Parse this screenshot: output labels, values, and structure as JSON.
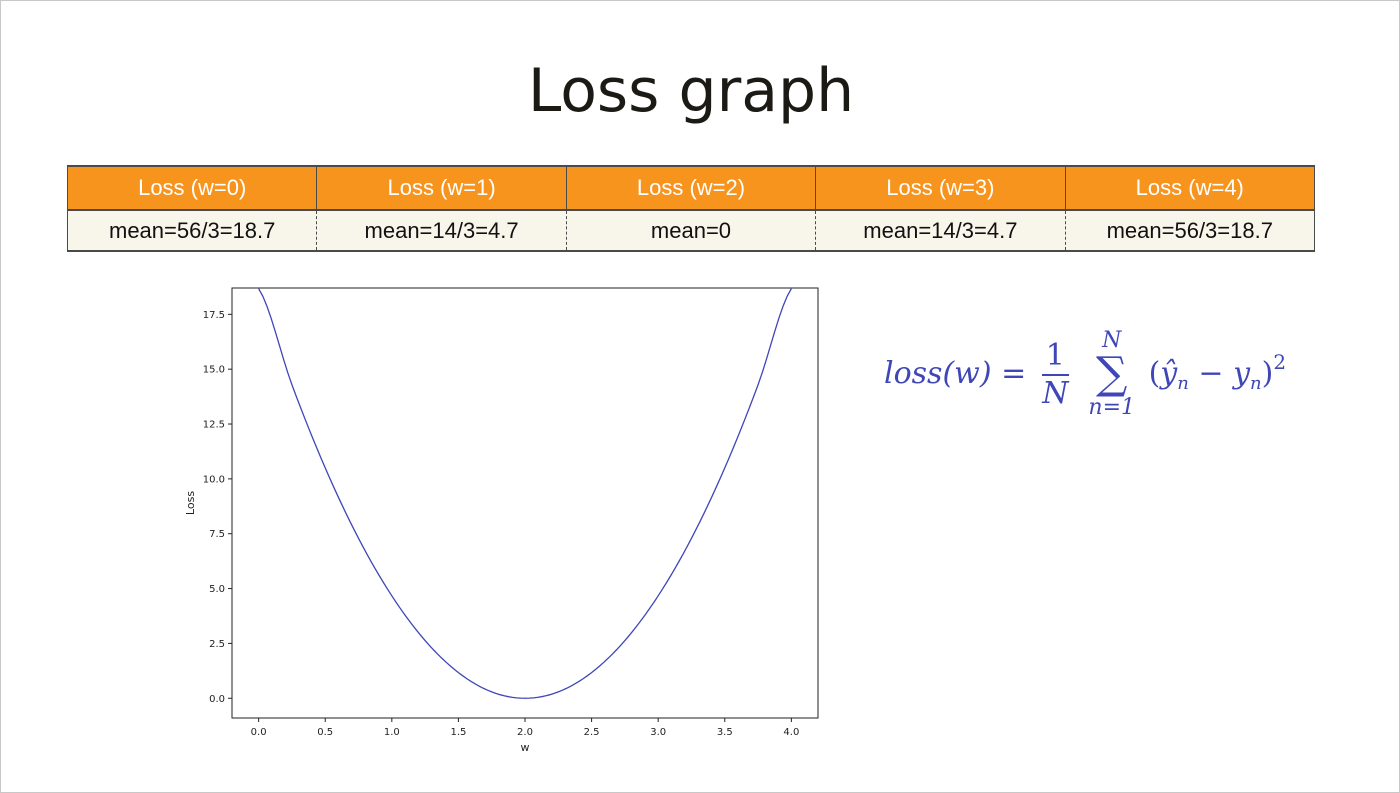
{
  "slide": {
    "title": "Loss graph"
  },
  "table": {
    "headers": [
      "Loss (w=0)",
      "Loss (w=1)",
      "Loss (w=2)",
      "Loss (w=3)",
      "Loss (w=4)"
    ],
    "values": [
      "mean=56/3=18.7",
      "mean=14/3=4.7",
      "mean=0",
      "mean=14/3=4.7",
      "mean=56/3=18.7"
    ],
    "colors": {
      "header_bg": "#f7941d",
      "header_text": "#ffffff",
      "row_bg": "#f8f6ea"
    }
  },
  "formula": {
    "lhs": "loss(w) =",
    "frac_num": "1",
    "frac_den": "N",
    "sum_upper": "N",
    "sum_symbol": "∑",
    "sum_lower": "n=1",
    "term_yhat": "ŷ",
    "term_sub_n": "n",
    "term_minus": "−",
    "term_y": "y",
    "power": "2",
    "color": "#3f46b8"
  },
  "chart_data": {
    "type": "line",
    "title": "",
    "xlabel": "w",
    "ylabel": "Loss",
    "xlim": [
      -0.2,
      4.2
    ],
    "ylim": [
      -0.9,
      18.7
    ],
    "x_ticks": [
      "0.0",
      "0.5",
      "1.0",
      "1.5",
      "2.0",
      "2.5",
      "3.0",
      "3.5",
      "4.0"
    ],
    "y_ticks": [
      "0.0",
      "2.5",
      "5.0",
      "7.5",
      "10.0",
      "12.5",
      "15.0",
      "17.5"
    ],
    "series": [
      {
        "color": "#3f46b8",
        "x": [
          0.0,
          0.25,
          0.5,
          0.75,
          1.0,
          1.25,
          1.5,
          1.75,
          2.0,
          2.25,
          2.5,
          2.75,
          3.0,
          3.25,
          3.5,
          3.75,
          4.0
        ],
        "y": [
          18.67,
          14.29,
          10.5,
          7.29,
          4.67,
          2.63,
          1.17,
          0.29,
          0.0,
          0.29,
          1.17,
          2.63,
          4.67,
          7.29,
          10.5,
          14.29,
          18.67
        ]
      }
    ],
    "grid": false,
    "legend": "none"
  }
}
